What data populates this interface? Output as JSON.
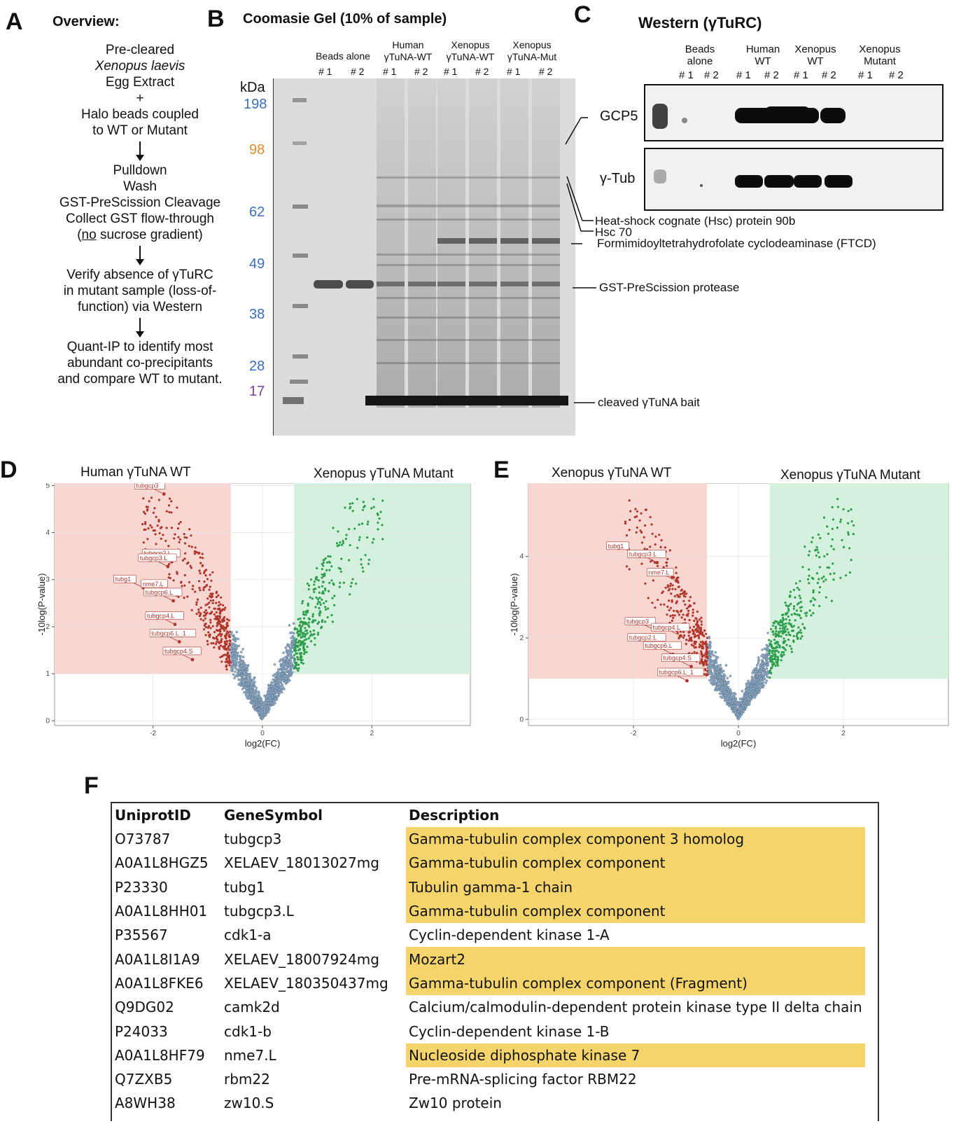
{
  "panel_labels": {
    "a": "A",
    "b": "B",
    "c": "C",
    "d": "D",
    "e": "E",
    "f": "F"
  },
  "panelA": {
    "title": "Overview:",
    "step1": [
      "Pre-cleared",
      "Xenopus laevis",
      "Egg Extract",
      "+",
      "Halo beads coupled",
      "to WT or Mutant"
    ],
    "step2": [
      "Pulldown",
      "Wash",
      "GST-PreScission Cleavage",
      "Collect GST flow-through"
    ],
    "step2_last_no": "no",
    "step2_last_rest": " sucrose gradient)",
    "step2_last_open": "(",
    "step3": [
      "Verify absence of γTuRC",
      "in mutant sample (loss-of-",
      "function) via Western"
    ],
    "step4": [
      "Quant-IP to identify most",
      "abundant co-precipitants",
      "and compare WT to mutant."
    ]
  },
  "panelB": {
    "title": "Coomasie Gel (10% of sample)",
    "kda_label": "kDa",
    "markers": [
      {
        "label": "198",
        "color": "#3a6fc4"
      },
      {
        "label": "98",
        "color": "#e08a2a"
      },
      {
        "label": "62",
        "color": "#3a6fc4"
      },
      {
        "label": "49",
        "color": "#3a6fc4"
      },
      {
        "label": "38",
        "color": "#3a6fc4"
      },
      {
        "label": "28",
        "color": "#3a6fc4"
      },
      {
        "label": "17",
        "color": "#7b3fa0"
      }
    ],
    "groups": [
      {
        "name1": "",
        "name2": "Beads alone"
      },
      {
        "name1": "Human",
        "name2": "γTuNA-WT"
      },
      {
        "name1": "Xenopus",
        "name2": "γTuNA-WT"
      },
      {
        "name1": "Xenopus",
        "name2": "γTuNA-Mut"
      }
    ],
    "rep1": "# 1",
    "rep2": "# 2",
    "annotations": [
      "Heat-shock cognate (Hsc) protein 90b",
      "Hsc 70",
      "Formimidoyltetrahydrofolate cyclodeaminase (FTCD)",
      "GST-PreScission protease",
      "cleaved γTuNA bait"
    ]
  },
  "panelC": {
    "title": "Western (γTuRC)",
    "groups": [
      {
        "name1": "Beads",
        "name2": "alone"
      },
      {
        "name1": "Human",
        "name2": "WT"
      },
      {
        "name1": "Xenopus",
        "name2": "WT"
      },
      {
        "name1": "Xenopus",
        "name2": "Mutant"
      }
    ],
    "rep1": "# 1",
    "rep2": "# 2",
    "blots": [
      "GCP5",
      "γ-Tub"
    ]
  },
  "chart_data": [
    {
      "type": "scatter",
      "title_left": "Human γTuNA WT",
      "title_right": "Xenopus γTuNA Mutant",
      "xlabel": "log2(FC)",
      "ylabel": "-10log(P-value)",
      "xlim": [
        -3.8,
        3.8
      ],
      "ylim": [
        -0.1,
        5.05
      ],
      "xticks": [
        "-2",
        "0",
        "2"
      ],
      "xtick_values": [
        -2,
        0,
        2
      ],
      "yticks": [
        "0",
        "1",
        "2",
        "3",
        "4",
        "5"
      ],
      "ytick_values": [
        0,
        1,
        2,
        3,
        4,
        5
      ],
      "region_left": {
        "x": [
          -3.8,
          -0.58
        ],
        "y": [
          1,
          5.05
        ],
        "color": "#f8d6d2"
      },
      "region_right": {
        "x": [
          0.58,
          3.8
        ],
        "y": [
          1,
          5.05
        ],
        "color": "#d3f1dd"
      },
      "labeled_points": [
        {
          "label": "tubgcp3",
          "x": -1.8,
          "y": 4.82
        },
        {
          "label": "tubgcp2.L",
          "x": -1.66,
          "y": 3.38
        },
        {
          "label": "tubgcp3.L",
          "x": -1.73,
          "y": 3.28
        },
        {
          "label": "tubg1",
          "x": -2.18,
          "y": 2.83
        },
        {
          "label": "nme7.L",
          "x": -1.68,
          "y": 2.73
        },
        {
          "label": "tubgcp6.L",
          "x": -1.63,
          "y": 2.55
        },
        {
          "label": "tubgcp4.L",
          "x": -1.6,
          "y": 2.05
        },
        {
          "label": "tubgcp6.L_1",
          "x": -1.52,
          "y": 1.68
        },
        {
          "label": "tubgcp4.S",
          "x": -1.28,
          "y": 1.3
        }
      ]
    },
    {
      "type": "scatter",
      "title_left": "Xenopus γTuNA WT",
      "title_right": "Xenopus γTuNA Mutant",
      "xlabel": "log2(FC)",
      "ylabel": "-10log(P-value)",
      "xlim": [
        -4.0,
        4.0
      ],
      "ylim": [
        -0.15,
        5.8
      ],
      "xticks": [
        "-2",
        "0",
        "2"
      ],
      "xtick_values": [
        -2,
        0,
        2
      ],
      "yticks": [
        "0",
        "2",
        "4"
      ],
      "ytick_values": [
        0,
        2,
        4
      ],
      "region_left": {
        "x": [
          -4.0,
          -0.6
        ],
        "y": [
          1,
          5.8
        ],
        "color": "#f8d6d2"
      },
      "region_right": {
        "x": [
          0.6,
          4.0
        ],
        "y": [
          1,
          5.8
        ],
        "color": "#d3f1dd"
      },
      "labeled_points": [
        {
          "label": "tubg1",
          "x": -1.95,
          "y": 4.05
        },
        {
          "label": "tubgcp3.L",
          "x": -1.55,
          "y": 3.85
        },
        {
          "label": "nme7.L",
          "x": -1.18,
          "y": 3.4
        },
        {
          "label": "tubgcp3",
          "x": -1.6,
          "y": 2.2
        },
        {
          "label": "tubgcp4.L",
          "x": -1.1,
          "y": 2.05
        },
        {
          "label": "tubgcp2.L",
          "x": -1.55,
          "y": 1.8
        },
        {
          "label": "tubgcp6.L",
          "x": -1.25,
          "y": 1.6
        },
        {
          "label": "tubgcp4.S",
          "x": -0.9,
          "y": 1.3
        },
        {
          "label": "tubgcp6.L_1",
          "x": -0.98,
          "y": 0.95
        }
      ]
    }
  ],
  "panelF": {
    "headers": [
      "UniprotID",
      "GeneSymbol",
      "Description"
    ],
    "rows": [
      {
        "id": "O73787",
        "gene": "tubgcp3",
        "desc": "Gamma-tubulin complex component 3 homolog",
        "hl": true
      },
      {
        "id": "A0A1L8HGZ5",
        "gene": "XELAEV_18013027mg",
        "desc": "Gamma-tubulin complex component",
        "hl": true
      },
      {
        "id": "P23330",
        "gene": "tubg1",
        "desc": "Tubulin gamma-1 chain",
        "hl": true
      },
      {
        "id": "A0A1L8HH01",
        "gene": "tubgcp3.L",
        "desc": "Gamma-tubulin complex component",
        "hl": true
      },
      {
        "id": "P35567",
        "gene": "cdk1-a",
        "desc": "Cyclin-dependent kinase 1-A",
        "hl": false
      },
      {
        "id": "A0A1L8I1A9",
        "gene": "XELAEV_18007924mg",
        "desc": "Mozart2",
        "hl": true
      },
      {
        "id": "A0A1L8FKE6",
        "gene": "XELAEV_180350437mg",
        "desc": "Gamma-tubulin complex component (Fragment)",
        "hl": true
      },
      {
        "id": "Q9DG02",
        "gene": "camk2d",
        "desc": "Calcium/calmodulin-dependent protein kinase type II delta chain",
        "hl": false
      },
      {
        "id": "P24033",
        "gene": "cdk1-b",
        "desc": "Cyclin-dependent kinase 1-B",
        "hl": false
      },
      {
        "id": "A0A1L8HF79",
        "gene": "nme7.L",
        "desc": "Nucleoside diphosphate kinase 7",
        "hl": true
      },
      {
        "id": "Q7ZXB5",
        "gene": "rbm22",
        "desc": "Pre-mRNA-splicing factor RBM22",
        "hl": false
      },
      {
        "id": "A8WH38",
        "gene": "zw10.S",
        "desc": "Zw10 protein",
        "hl": false
      }
    ]
  }
}
